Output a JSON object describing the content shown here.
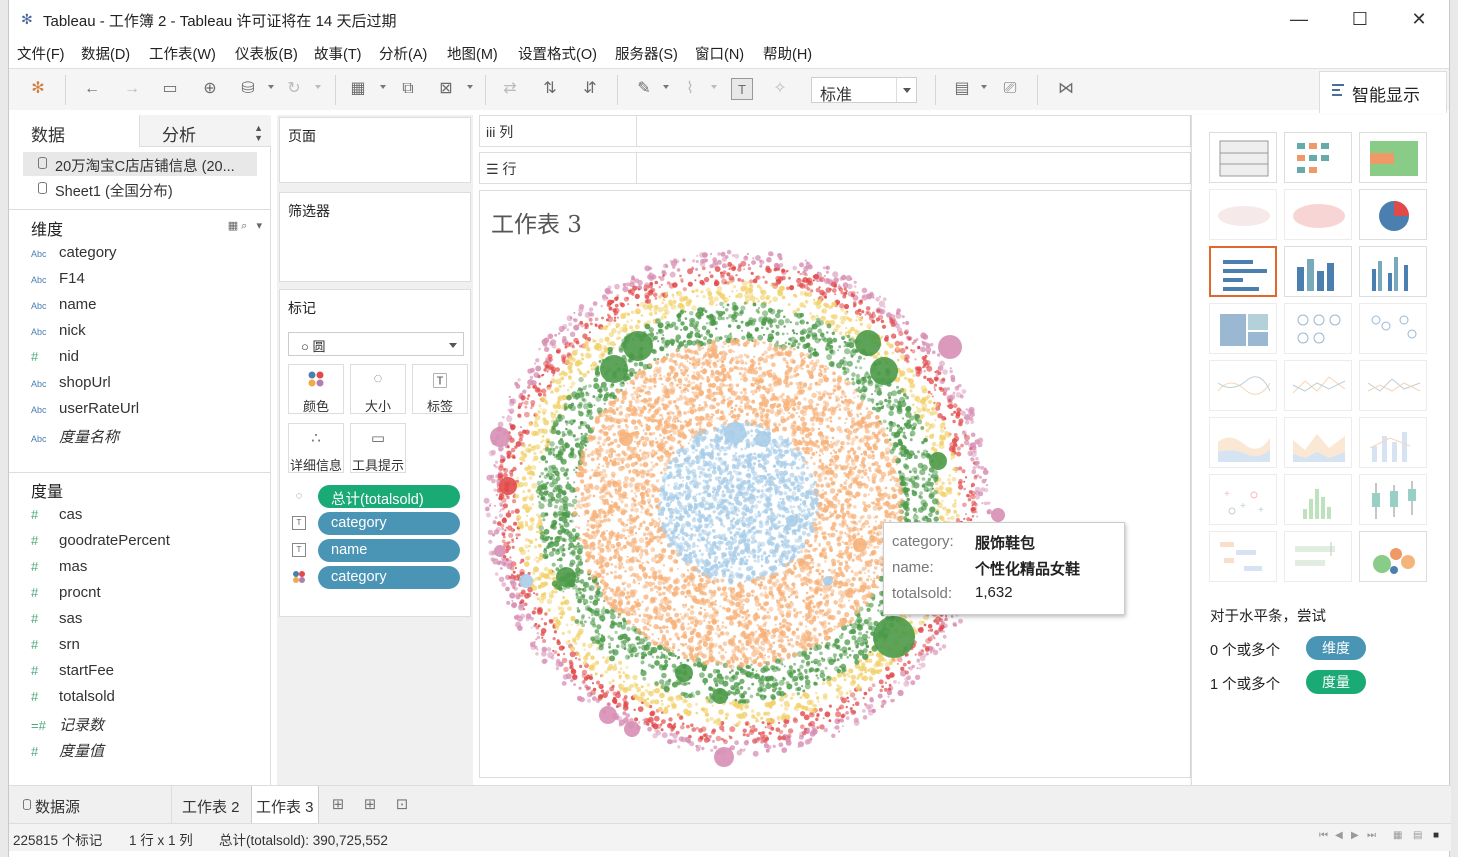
{
  "window": {
    "title": "Tableau - 工作簿 2 - Tableau 许可证将在 14 天后过期",
    "minimize": "—",
    "maximize": "☐",
    "close": "✕"
  },
  "menu": [
    "文件(F)",
    "数据(D)",
    "工作表(W)",
    "仪表板(B)",
    "故事(T)",
    "分析(A)",
    "地图(M)",
    "设置格式(O)",
    "服务器(S)",
    "窗口(N)",
    "帮助(H)"
  ],
  "toolbar": {
    "fit_value": "标准",
    "show_me_label": "智能显示"
  },
  "datapane": {
    "tab_data": "数据",
    "tab_analysis": "分析",
    "sources": [
      "20万淘宝C店店铺信息 (20...",
      "Sheet1 (全国分布)"
    ],
    "dimensions_header": "维度",
    "dimensions": [
      {
        "type": "Abc",
        "name": "category",
        "italic": false
      },
      {
        "type": "Abc",
        "name": "F14",
        "italic": false
      },
      {
        "type": "Abc",
        "name": "name",
        "italic": false
      },
      {
        "type": "Abc",
        "name": "nick",
        "italic": false
      },
      {
        "type": "#",
        "name": "nid",
        "italic": false
      },
      {
        "type": "Abc",
        "name": "shopUrl",
        "italic": false
      },
      {
        "type": "Abc",
        "name": "userRateUrl",
        "italic": false
      },
      {
        "type": "Abc",
        "name": "度量名称",
        "italic": true
      }
    ],
    "measures_header": "度量",
    "measures": [
      {
        "type": "#",
        "name": "cas",
        "italic": false
      },
      {
        "type": "#",
        "name": "goodratePercent",
        "italic": false
      },
      {
        "type": "#",
        "name": "mas",
        "italic": false
      },
      {
        "type": "#",
        "name": "procnt",
        "italic": false
      },
      {
        "type": "#",
        "name": "sas",
        "italic": false
      },
      {
        "type": "#",
        "name": "srn",
        "italic": false
      },
      {
        "type": "#",
        "name": "startFee",
        "italic": false
      },
      {
        "type": "#",
        "name": "totalsold",
        "italic": false
      },
      {
        "type": "=#",
        "name": "记录数",
        "italic": true
      },
      {
        "type": "#",
        "name": "度量值",
        "italic": true
      }
    ]
  },
  "cards": {
    "pages": "页面",
    "filters": "筛选器",
    "marks": "标记",
    "mark_type": "○ 圆",
    "mark_buttons": [
      "颜色",
      "大小",
      "标签",
      "详细信息",
      "工具提示"
    ],
    "pills": [
      {
        "label": "总计(totalsold)",
        "color": "#1aaa76"
      },
      {
        "label": "category",
        "color": "#4a95b5"
      },
      {
        "label": "name",
        "color": "#4a95b5"
      },
      {
        "label": "category",
        "color": "#4a95b5"
      }
    ]
  },
  "shelves": {
    "columns": "iii  列",
    "rows": "☰  行"
  },
  "view": {
    "sheet_title": "工作表 3",
    "tooltip": {
      "rows": [
        {
          "key": "category:",
          "value": "服饰鞋包"
        },
        {
          "key": "name:",
          "value": "个性化精品女鞋"
        },
        {
          "key": "totalsold:",
          "value": "1,632"
        }
      ]
    },
    "ring_colors": [
      "#d78fb4",
      "#e24a4a",
      "#f2d16b",
      "#4b9a48",
      "#f7b27a",
      "#a9cde8"
    ]
  },
  "showme": {
    "hint": "对于水平条，尝试",
    "row1": {
      "text": "0 个或多个",
      "badge": "维度",
      "color": "#4a95b5"
    },
    "row2": {
      "text": "1 个或多个",
      "badge": "度量",
      "color": "#1aaa76"
    },
    "selected_index": 6
  },
  "sheets": {
    "datasource": "数据源",
    "tabs": [
      "工作表 2",
      "工作表 3"
    ]
  },
  "status": {
    "marks": "225815 个标记",
    "rows_cols": "1 行 x 1 列",
    "sum": "总计(totalsold): 390,725,552"
  }
}
